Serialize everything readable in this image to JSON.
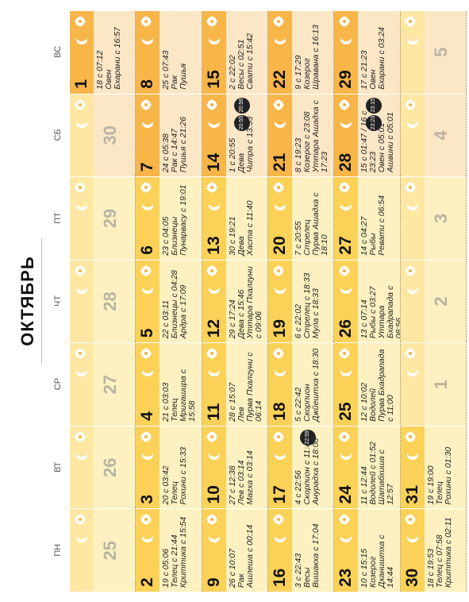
{
  "title": "ОКТЯБРЬ",
  "weekdays": [
    "ПН",
    "ВТ",
    "СР",
    "ЧТ",
    "ПТ",
    "СБ",
    "ВС"
  ],
  "weeks": [
    {
      "days": [
        {
          "number": "25"
        },
        {
          "number": "26"
        },
        {
          "number": "27"
        },
        {
          "number": "28"
        },
        {
          "number": "29"
        },
        {
          "number": "30"
        },
        {
          "number": "1",
          "lines": [
            "18 с 07:12",
            "Овен",
            "Бхарани с 16:57"
          ]
        }
      ]
    },
    {
      "days": [
        {
          "number": "2",
          "lines": [
            "19 с 05:06",
            "Телец с 21:44",
            "Криттика с 15:54"
          ]
        },
        {
          "number": "3",
          "lines": [
            "20 с 03:42",
            "Телец",
            "Рохини с 15:33"
          ]
        },
        {
          "number": "4",
          "lines": [
            "21 с 03:03",
            "Телец",
            "Мригашира с 15:58"
          ]
        },
        {
          "number": "5",
          "lines": [
            "22 с 03:11",
            "Близнецы с 04:28",
            "Ардра с 17:09"
          ]
        },
        {
          "number": "6",
          "lines": [
            "23 с 04:05",
            "Близнецы",
            "Пунарвасу с 19:01"
          ]
        },
        {
          "number": "7",
          "lines": [
            "24 с 05:38",
            "Рак с 14:47",
            "Пушья с 21:26"
          ]
        },
        {
          "number": "8",
          "lines": [
            "25 с 07:43",
            "Рак",
            "Пушья"
          ]
        }
      ]
    },
    {
      "days": [
        {
          "number": "9",
          "lines": [
            "26 с 10:07",
            "Рак",
            "Ашлеша с 00:14"
          ]
        },
        {
          "number": "10",
          "lines": [
            "27 с 12:38",
            "Лев с 03:14",
            "Магха с 03:14"
          ]
        },
        {
          "number": "11",
          "lines": [
            "28 с 15:07",
            "Лев",
            "Пурва Пхалгуни с 06:14"
          ]
        },
        {
          "number": "12",
          "lines": [
            "29 с 17:24",
            "Дева с 15:46",
            "Уттара Пхалгуни с 09:06"
          ]
        },
        {
          "number": "13",
          "lines": [
            "30 с 19:21",
            "Дева",
            "Хаста с 11:40"
          ]
        },
        {
          "number": "14",
          "lines": [
            "1 с 20:55",
            "Дева",
            "Читра с 13:53"
          ],
          "badges": [
            "20:55",
            "20:56"
          ]
        },
        {
          "number": "15",
          "lines": [
            "2 с 22:02",
            "Весы с 02:51",
            "Свати с 15:42"
          ]
        }
      ]
    },
    {
      "days": [
        {
          "number": "16",
          "lines": [
            "3 с 22:43",
            "Весы",
            "Вишакха с 17:04"
          ]
        },
        {
          "number": "17",
          "lines": [
            "4 с 22:56",
            "Скорпион с 11:49",
            "Анурадха с 18:00"
          ],
          "badges": [
            "22:59"
          ]
        },
        {
          "number": "18",
          "lines": [
            "5 с 22:42",
            "Скорпион",
            "Джйештха с 18:30"
          ]
        },
        {
          "number": "19",
          "lines": [
            "6 с 22:02",
            "Стрелец с 18:33",
            "Мула с 18:33"
          ]
        },
        {
          "number": "20",
          "lines": [
            "7 с 20:55",
            "Стрелец",
            "Пурва Ашадха с 18:10"
          ]
        },
        {
          "number": "21",
          "lines": [
            "8 с 19:23",
            "Козерог с 23:08",
            "Уттара Ашадха с 17:23"
          ]
        },
        {
          "number": "22",
          "lines": [
            "9 с 17:29",
            "Козерог",
            "Шравана с 16:13"
          ]
        }
      ]
    },
    {
      "days": [
        {
          "number": "23",
          "lines": [
            "10 с 15:15",
            "Козерог",
            "Дхаништха с 14:44"
          ]
        },
        {
          "number": "24",
          "lines": [
            "11 с 12:44",
            "Водолей с 01:52",
            "Шатабхиша с 12:57"
          ]
        },
        {
          "number": "25",
          "lines": [
            "12 с 10:02",
            "Водолей",
            "Пурва Бхадрапада с 11:00"
          ]
        },
        {
          "number": "26",
          "lines": [
            "13 с 07:14",
            "Рыбы с 03:27",
            "Уттара Бхадрапада с 08:56"
          ]
        },
        {
          "number": "27",
          "lines": [
            "14 с 04:27",
            "Рыбы",
            "Ревати с 06:54"
          ]
        },
        {
          "number": "28",
          "lines": [
            "15 с 01:47 / 16 с 23:23",
            "Овен с 05:01",
            "Ашвини с 05:01"
          ],
          "badges": [
            "23:23",
            "23:15"
          ]
        },
        {
          "number": "29",
          "lines": [
            "17 с 21:23",
            "Овен",
            "Бхарани с 03:24"
          ]
        }
      ]
    },
    {
      "days": [
        {
          "number": "30",
          "lines": [
            "18 с 19:53",
            "Телец с 07:58",
            "Криттика с 02:11"
          ]
        },
        {
          "number": "31",
          "lines": [
            "19 с 19:00",
            "Телец",
            "Рохини с 01:30"
          ]
        },
        {
          "number": "1"
        },
        {
          "number": "2"
        },
        {
          "number": "3"
        },
        {
          "number": "4"
        },
        {
          "number": "5"
        }
      ]
    }
  ]
}
